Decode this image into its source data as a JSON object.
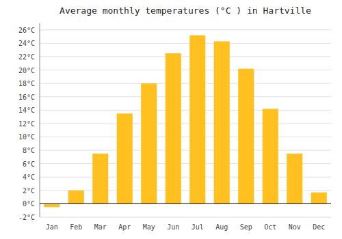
{
  "chart_data": {
    "type": "bar",
    "title": "Average monthly temperatures (°C ) in Hartville",
    "categories": [
      "Jan",
      "Feb",
      "Mar",
      "Apr",
      "May",
      "Jun",
      "Jul",
      "Aug",
      "Sep",
      "Oct",
      "Nov",
      "Dec"
    ],
    "values": [
      -0.5,
      2.0,
      7.5,
      13.5,
      18.0,
      22.5,
      25.2,
      24.3,
      20.2,
      14.2,
      7.5,
      1.7
    ],
    "color": "#FFC020",
    "ylim": [
      -2,
      27
    ],
    "yticks": [
      {
        "value": -2,
        "label": "-2°C"
      },
      {
        "value": 0,
        "label": "0°C"
      },
      {
        "value": 2,
        "label": "2°C"
      },
      {
        "value": 4,
        "label": "4°C"
      },
      {
        "value": 6,
        "label": "6°C"
      },
      {
        "value": 8,
        "label": "8°C"
      },
      {
        "value": 10,
        "label": "10°C"
      },
      {
        "value": 12,
        "label": "12°C"
      },
      {
        "value": 14,
        "label": "14°C"
      },
      {
        "value": 16,
        "label": "16°C"
      },
      {
        "value": 18,
        "label": "18°C"
      },
      {
        "value": 20,
        "label": "20°C"
      },
      {
        "value": 22,
        "label": "22°C"
      },
      {
        "value": 24,
        "label": "24°C"
      },
      {
        "value": 26,
        "label": "26°C"
      }
    ],
    "grid": true
  }
}
